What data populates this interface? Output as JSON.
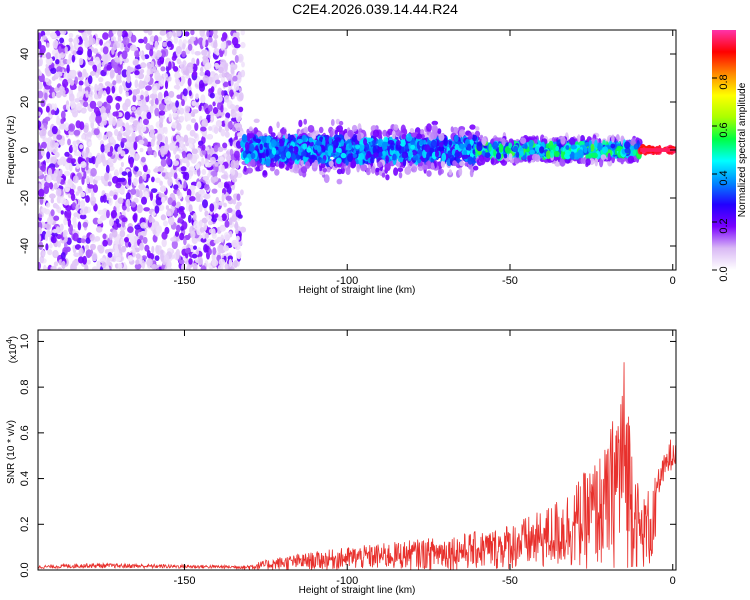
{
  "title": "C2E4.2026.039.14.44.R24",
  "colors": {
    "spectrogram_points": "#6a10e0",
    "spectrogram_faint": "#c9a8f3",
    "snr_line": "#e8302c",
    "colorbar_stops": [
      "#ffffff",
      "#d9b8f5",
      "#7a00ff",
      "#2200ff",
      "#0088ff",
      "#00ffff",
      "#00ff44",
      "#aaff00",
      "#ffff00",
      "#ff8800",
      "#ff0000",
      "#ff33aa"
    ]
  },
  "chart_data": [
    {
      "type": "heatmap",
      "title": "C2E4.2026.039.14.44.R24",
      "xlabel": "Height of straight line (km)",
      "ylabel": "Frequency (Hz)",
      "xlim": [
        -195,
        1
      ],
      "ylim": [
        -50,
        50
      ],
      "x_ticks": [
        -150,
        -100,
        -50,
        0
      ],
      "y_ticks": [
        -40,
        -20,
        0,
        20,
        40
      ],
      "colorbar": {
        "label": "Normalized spectral amplitude",
        "range": [
          0,
          1
        ],
        "ticks": [
          "0.0",
          "0.2",
          "0.4",
          "0.6",
          "0.8"
        ]
      },
      "description_bands": [
        {
          "x": [
            -195,
            -132
          ],
          "freq_spread": 50,
          "amplitude": 0.15
        },
        {
          "x": [
            -132,
            -60
          ],
          "freq_spread": 15,
          "amplitude": 0.35
        },
        {
          "x": [
            -60,
            -10
          ],
          "freq_spread": 8,
          "amplitude": 0.45
        },
        {
          "x": [
            -10,
            1
          ],
          "freq_spread": 1,
          "amplitude": 0.95
        }
      ]
    },
    {
      "type": "line",
      "xlabel": "Height of straight line (km)",
      "ylabel": "SNR (10 * v/v)",
      "y_multiplier": "(x10",
      "y_multiplier_exp": "4",
      "xlim": [
        -195,
        1
      ],
      "ylim": [
        0,
        1.05
      ],
      "x_ticks": [
        -150,
        -100,
        -50,
        0
      ],
      "y_ticks": [
        "0.0",
        "0.2",
        "0.4",
        "0.6",
        "0.8",
        "1.0"
      ],
      "envelope": [
        {
          "x": -195,
          "y": 0.02
        },
        {
          "x": -180,
          "y": 0.03
        },
        {
          "x": -132,
          "y": 0.02
        },
        {
          "x": -120,
          "y": 0.06
        },
        {
          "x": -100,
          "y": 0.1
        },
        {
          "x": -75,
          "y": 0.14
        },
        {
          "x": -55,
          "y": 0.18
        },
        {
          "x": -40,
          "y": 0.26
        },
        {
          "x": -30,
          "y": 0.38
        },
        {
          "x": -20,
          "y": 0.55
        },
        {
          "x": -15,
          "y": 0.95
        },
        {
          "x": -10,
          "y": 0.3
        },
        {
          "x": -5,
          "y": 0.42
        },
        {
          "x": 0,
          "y": 0.6
        }
      ]
    }
  ]
}
